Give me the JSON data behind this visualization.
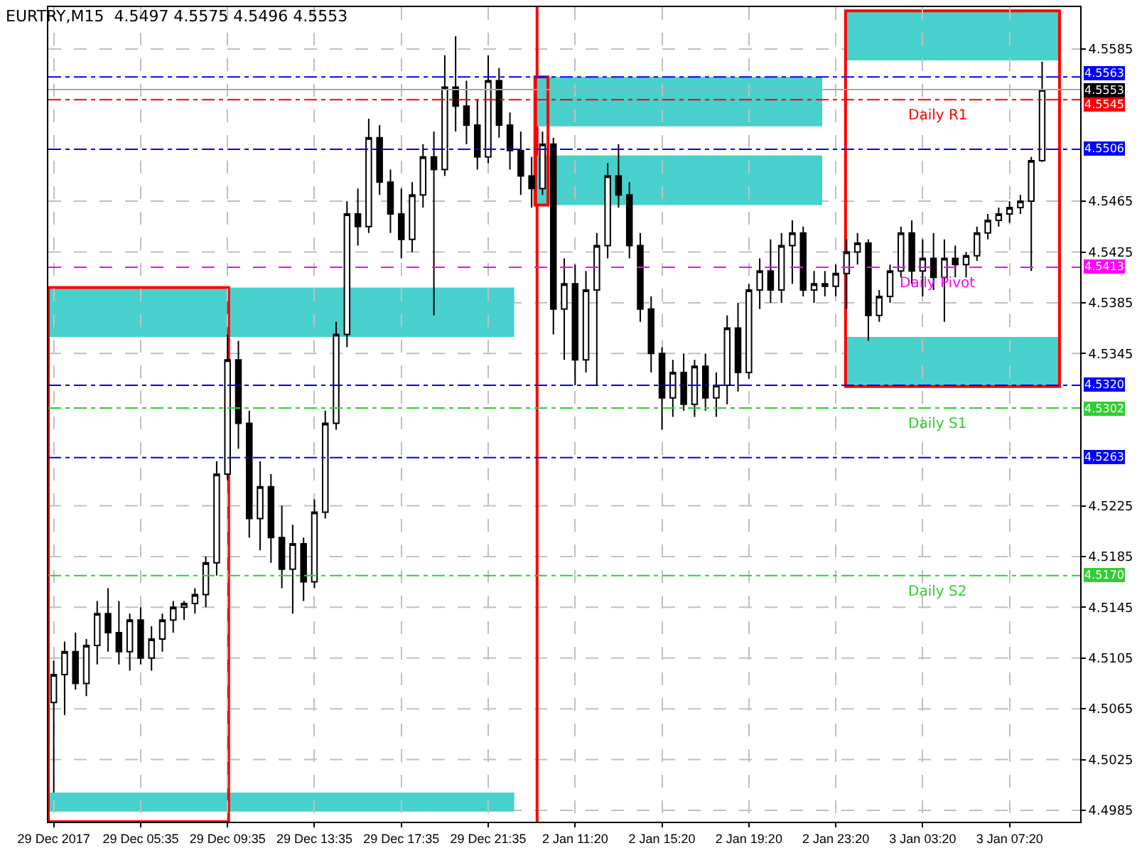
{
  "chart_data": {
    "type": "candlestick",
    "title": "EURTRY,M15  4.5497 4.5575 4.5496 4.5553",
    "color": "#000000",
    "annotations": [
      {
        "text": "Daily R1",
        "y": 4.5545
      },
      {
        "text": "Daily Pivot",
        "y": 4.5413
      },
      {
        "text": "Daily S1",
        "y": 4.5302
      },
      {
        "text": "Daily S2",
        "y": 4.517
      }
    ],
    "categories": [
      "29 Dec 2017",
      null,
      null,
      null,
      null,
      null,
      null,
      null,
      "29 Dec 05:35",
      null,
      null,
      null,
      null,
      null,
      null,
      null,
      "29 Dec 09:35",
      null,
      null,
      null,
      null,
      null,
      null,
      null,
      "29 Dec 13:35",
      null,
      null,
      null,
      null,
      null,
      null,
      null,
      "29 Dec 17:35",
      null,
      null,
      null,
      null,
      null,
      null,
      null,
      "29 Dec 21:35",
      null,
      null,
      null,
      null,
      null,
      null,
      null,
      "2 Jan 11:20",
      null,
      null,
      null,
      null,
      null,
      null,
      null,
      "2 Jan 15:20",
      null,
      null,
      null,
      null,
      null,
      null,
      null,
      "2 Jan 19:20",
      null,
      null,
      null,
      null,
      null,
      null,
      null,
      "2 Jan 23:20",
      null,
      null,
      null,
      null,
      null,
      null,
      null,
      "3 Jan 03:20",
      null,
      null,
      null,
      null,
      null,
      null,
      null,
      "3 Jan 07:20",
      null,
      null,
      null
    ],
    "ohlc": [
      [
        4.507,
        4.5103,
        4.4999,
        4.5092
      ],
      [
        4.5092,
        4.5118,
        4.506,
        4.511
      ],
      [
        4.511,
        4.5125,
        4.508,
        4.5085
      ],
      [
        4.5085,
        4.512,
        4.5075,
        4.5115
      ],
      [
        4.5115,
        4.515,
        4.51,
        4.514
      ],
      [
        4.514,
        4.516,
        4.511,
        4.5125
      ],
      [
        4.5125,
        4.515,
        4.51,
        4.511
      ],
      [
        4.511,
        4.514,
        4.5095,
        4.5135
      ],
      [
        4.5135,
        4.5145,
        4.51,
        4.5105
      ],
      [
        4.5105,
        4.513,
        4.5095,
        4.512
      ],
      [
        4.512,
        4.514,
        4.511,
        4.5135
      ],
      [
        4.5135,
        4.515,
        4.5125,
        4.5145
      ],
      [
        4.5145,
        4.515,
        4.5135,
        4.5148
      ],
      [
        4.5148,
        4.516,
        4.514,
        4.5155
      ],
      [
        4.5155,
        4.5185,
        4.5145,
        4.518
      ],
      [
        4.518,
        4.526,
        4.517,
        4.525
      ],
      [
        4.525,
        4.536,
        4.5245,
        4.534
      ],
      [
        4.534,
        4.5355,
        4.527,
        4.529
      ],
      [
        4.529,
        4.53,
        4.52,
        4.5215
      ],
      [
        4.5215,
        4.526,
        4.519,
        4.524
      ],
      [
        4.524,
        4.525,
        4.518,
        4.52
      ],
      [
        4.52,
        4.5225,
        4.516,
        4.5175
      ],
      [
        4.5175,
        4.521,
        4.514,
        4.5195
      ],
      [
        4.5195,
        4.52,
        4.515,
        4.5165
      ],
      [
        4.5165,
        4.523,
        4.516,
        4.522
      ],
      [
        4.522,
        4.53,
        4.5215,
        4.529
      ],
      [
        4.529,
        4.537,
        4.5285,
        4.536
      ],
      [
        4.536,
        4.5465,
        4.535,
        4.5455
      ],
      [
        4.5455,
        4.5475,
        4.543,
        4.5445
      ],
      [
        4.5445,
        4.553,
        4.544,
        4.5515
      ],
      [
        4.5515,
        4.5525,
        4.547,
        4.548
      ],
      [
        4.548,
        4.549,
        4.544,
        4.5455
      ],
      [
        4.5455,
        4.5475,
        4.542,
        4.5435
      ],
      [
        4.5435,
        4.548,
        4.5425,
        4.547
      ],
      [
        4.547,
        4.551,
        4.546,
        4.55
      ],
      [
        4.55,
        4.552,
        4.5375,
        4.549
      ],
      [
        4.549,
        4.558,
        4.5485,
        4.5555
      ],
      [
        4.5555,
        4.5595,
        4.552,
        4.554
      ],
      [
        4.554,
        4.556,
        4.551,
        4.5525
      ],
      [
        4.5525,
        4.5545,
        4.549,
        4.55
      ],
      [
        4.55,
        4.558,
        4.5495,
        4.556
      ],
      [
        4.556,
        4.557,
        4.5515,
        4.5525
      ],
      [
        4.5525,
        4.5535,
        4.549,
        4.5505
      ],
      [
        4.5505,
        4.552,
        4.547,
        4.5485
      ],
      [
        4.5485,
        4.55,
        4.546,
        4.5475
      ],
      [
        4.5475,
        4.552,
        4.547,
        4.551
      ],
      [
        4.551,
        4.5515,
        4.536,
        4.538
      ],
      [
        4.538,
        4.542,
        4.534,
        4.54
      ],
      [
        4.54,
        4.5415,
        4.532,
        4.534
      ],
      [
        4.534,
        4.541,
        4.533,
        4.5395
      ],
      [
        4.5395,
        4.544,
        4.532,
        4.543
      ],
      [
        4.543,
        4.5495,
        4.542,
        4.5485
      ],
      [
        4.5485,
        4.551,
        4.546,
        4.547
      ],
      [
        4.547,
        4.548,
        4.542,
        4.543
      ],
      [
        4.543,
        4.544,
        4.537,
        4.538
      ],
      [
        4.538,
        4.539,
        4.533,
        4.5345
      ],
      [
        4.5345,
        4.535,
        4.5285,
        4.531
      ],
      [
        4.531,
        4.534,
        4.5295,
        4.533
      ],
      [
        4.533,
        4.5345,
        4.53,
        4.5305
      ],
      [
        4.5305,
        4.534,
        4.5295,
        4.5335
      ],
      [
        4.5335,
        4.5345,
        4.53,
        4.531
      ],
      [
        4.531,
        4.533,
        4.5295,
        4.532
      ],
      [
        4.532,
        4.5375,
        4.5305,
        4.5365
      ],
      [
        4.5365,
        4.5385,
        4.5315,
        4.533
      ],
      [
        4.533,
        4.54,
        4.5325,
        4.5395
      ],
      [
        4.5395,
        4.542,
        4.538,
        4.541
      ],
      [
        4.541,
        4.5435,
        4.5385,
        4.5395
      ],
      [
        4.5395,
        4.544,
        4.5385,
        4.543
      ],
      [
        4.543,
        4.545,
        4.54,
        4.544
      ],
      [
        4.544,
        4.5445,
        4.539,
        4.5395
      ],
      [
        4.5395,
        4.541,
        4.5385,
        4.54
      ],
      [
        4.54,
        4.541,
        4.539,
        4.5398
      ],
      [
        4.5398,
        4.5415,
        4.539,
        4.5408
      ],
      [
        4.5408,
        4.5435,
        4.538,
        4.5425
      ],
      [
        4.5425,
        4.544,
        4.5415,
        4.5432
      ],
      [
        4.5432,
        4.5435,
        4.5355,
        4.5375
      ],
      [
        4.5375,
        4.5395,
        4.537,
        4.539
      ],
      [
        4.539,
        4.5415,
        4.5385,
        4.541
      ],
      [
        4.541,
        4.5445,
        4.5405,
        4.544
      ],
      [
        4.544,
        4.545,
        4.54,
        4.541
      ],
      [
        4.541,
        4.5435,
        4.539,
        4.542
      ],
      [
        4.542,
        4.544,
        4.5395,
        4.5405
      ],
      [
        4.5405,
        4.5435,
        4.537,
        4.542
      ],
      [
        4.542,
        4.543,
        4.5405,
        4.5415
      ],
      [
        4.5415,
        4.5425,
        4.5405,
        4.5422
      ],
      [
        4.5422,
        4.5445,
        4.5418,
        4.544
      ],
      [
        4.544,
        4.5455,
        4.5435,
        4.545
      ],
      [
        4.545,
        4.546,
        4.5445,
        4.5455
      ],
      [
        4.5455,
        4.5465,
        4.5448,
        4.546
      ],
      [
        4.546,
        4.547,
        4.5455,
        4.5465
      ],
      [
        4.5465,
        4.55,
        4.541,
        4.5497
      ],
      [
        4.5497,
        4.5575,
        4.5496,
        4.5553
      ]
    ],
    "ylim": [
      4.4976,
      4.5618
    ],
    "yticks": [
      4.4985,
      4.5025,
      4.5065,
      4.5105,
      4.5145,
      4.5185,
      4.5225,
      4.5345,
      4.5385,
      4.5425,
      4.5465,
      4.5585
    ],
    "grid": true,
    "ref_lines": [
      {
        "axis": "y",
        "value": 4.5563,
        "label": "4.5563",
        "color": "#0000ff",
        "line_style": "dashdot"
      },
      {
        "axis": "y",
        "value": 4.5553,
        "label": "4.5553",
        "color": "#a8a8a8",
        "line_style": "solid"
      },
      {
        "axis": "y",
        "value": 4.5545,
        "label": "4.5545",
        "color": "#ff0000",
        "line_style": "dashdot"
      },
      {
        "axis": "y",
        "value": 4.5506,
        "label": "4.5506",
        "color": "#0000ff",
        "line_style": "dashdot"
      },
      {
        "axis": "y",
        "value": 4.5413,
        "label": "4.5413",
        "color": "#ff00ff",
        "line_style": "dashed"
      },
      {
        "axis": "y",
        "value": 4.532,
        "label": "4.5320",
        "color": "#0000ff",
        "line_style": "dashdot"
      },
      {
        "axis": "y",
        "value": 4.5302,
        "label": "4.5302",
        "color": "#32cd32",
        "line_style": "dashdot"
      },
      {
        "axis": "y",
        "value": 4.5263,
        "label": "4.5263",
        "color": "#0000ff",
        "line_style": "dashdot"
      },
      {
        "axis": "y",
        "value": 4.517,
        "label": "4.5170",
        "color": "#32cd32",
        "line_style": "dashdot"
      }
    ],
    "bands": [
      {
        "axis": "y",
        "from": 4.5358,
        "to": 4.5397,
        "color": "#48d1cc"
      },
      {
        "axis": "y",
        "from": 4.4984,
        "to": 4.4999,
        "color": "#48d1cc"
      },
      {
        "axis": "y",
        "from": 4.5524,
        "to": 4.5563,
        "color": "#48d1cc"
      },
      {
        "axis": "y",
        "from": 4.5462,
        "to": 4.5501,
        "color": "#48d1cc"
      },
      {
        "axis": "y",
        "from": 4.5576,
        "to": 4.5615,
        "color": "#48d1cc"
      },
      {
        "axis": "y",
        "from": 4.5319,
        "to": 4.5358,
        "color": "#48d1cc"
      }
    ]
  }
}
